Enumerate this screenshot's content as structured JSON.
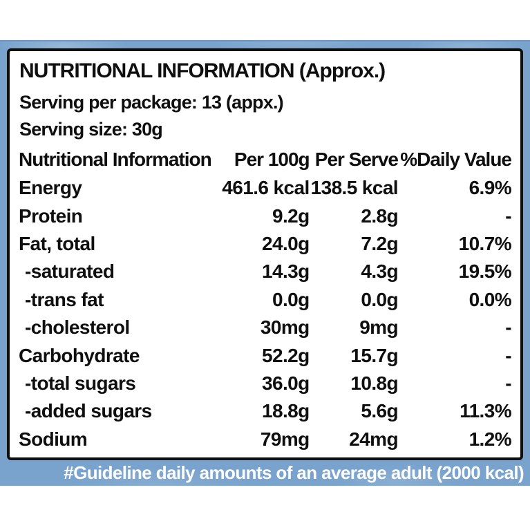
{
  "colors": {
    "band_blue": "#79a3cd",
    "band_edge_blue": "#6d97c2",
    "panel_white": "#ffffff",
    "border_black": "#0f0f0f",
    "text_black": "#0f0f0f",
    "footer_white": "#ffffff"
  },
  "label": {
    "title": "NUTRITIONAL INFORMATION (Approx.)",
    "serving_per_package": "Serving per package: 13 (appx.)",
    "serving_size": "Serving size: 30g",
    "table": {
      "headers": [
        "Nutritional Information",
        "Per 100g",
        "Per Serve",
        "%Daily Value"
      ],
      "rows": [
        {
          "name": "Energy",
          "per_100g": "461.6 kcal",
          "per_serve": "138.5 kcal",
          "daily_value": "6.9%",
          "indent": false
        },
        {
          "name": "Protein",
          "per_100g": "9.2g",
          "per_serve": "2.8g",
          "daily_value": "-",
          "indent": false
        },
        {
          "name": "Fat, total",
          "per_100g": "24.0g",
          "per_serve": "7.2g",
          "daily_value": "10.7%",
          "indent": false
        },
        {
          "name": "-saturated",
          "per_100g": "14.3g",
          "per_serve": "4.3g",
          "daily_value": "19.5%",
          "indent": true
        },
        {
          "name": "-trans fat",
          "per_100g": "0.0g",
          "per_serve": "0.0g",
          "daily_value": "0.0%",
          "indent": true
        },
        {
          "name": "-cholesterol",
          "per_100g": "30mg",
          "per_serve": "9mg",
          "daily_value": "-",
          "indent": true
        },
        {
          "name": "Carbohydrate",
          "per_100g": "52.2g",
          "per_serve": "15.7g",
          "daily_value": "-",
          "indent": false
        },
        {
          "name": "-total sugars",
          "per_100g": "36.0g",
          "per_serve": "10.8g",
          "daily_value": "-",
          "indent": true
        },
        {
          "name": "-added sugars",
          "per_100g": "18.8g",
          "per_serve": "5.6g",
          "daily_value": "11.3%",
          "indent": true
        },
        {
          "name": "Sodium",
          "per_100g": "79mg",
          "per_serve": "24mg",
          "daily_value": "1.2%",
          "indent": false
        }
      ]
    }
  },
  "band": {
    "footer_note": "#Guideline daily amounts of an average adult (2000 kcal)"
  }
}
